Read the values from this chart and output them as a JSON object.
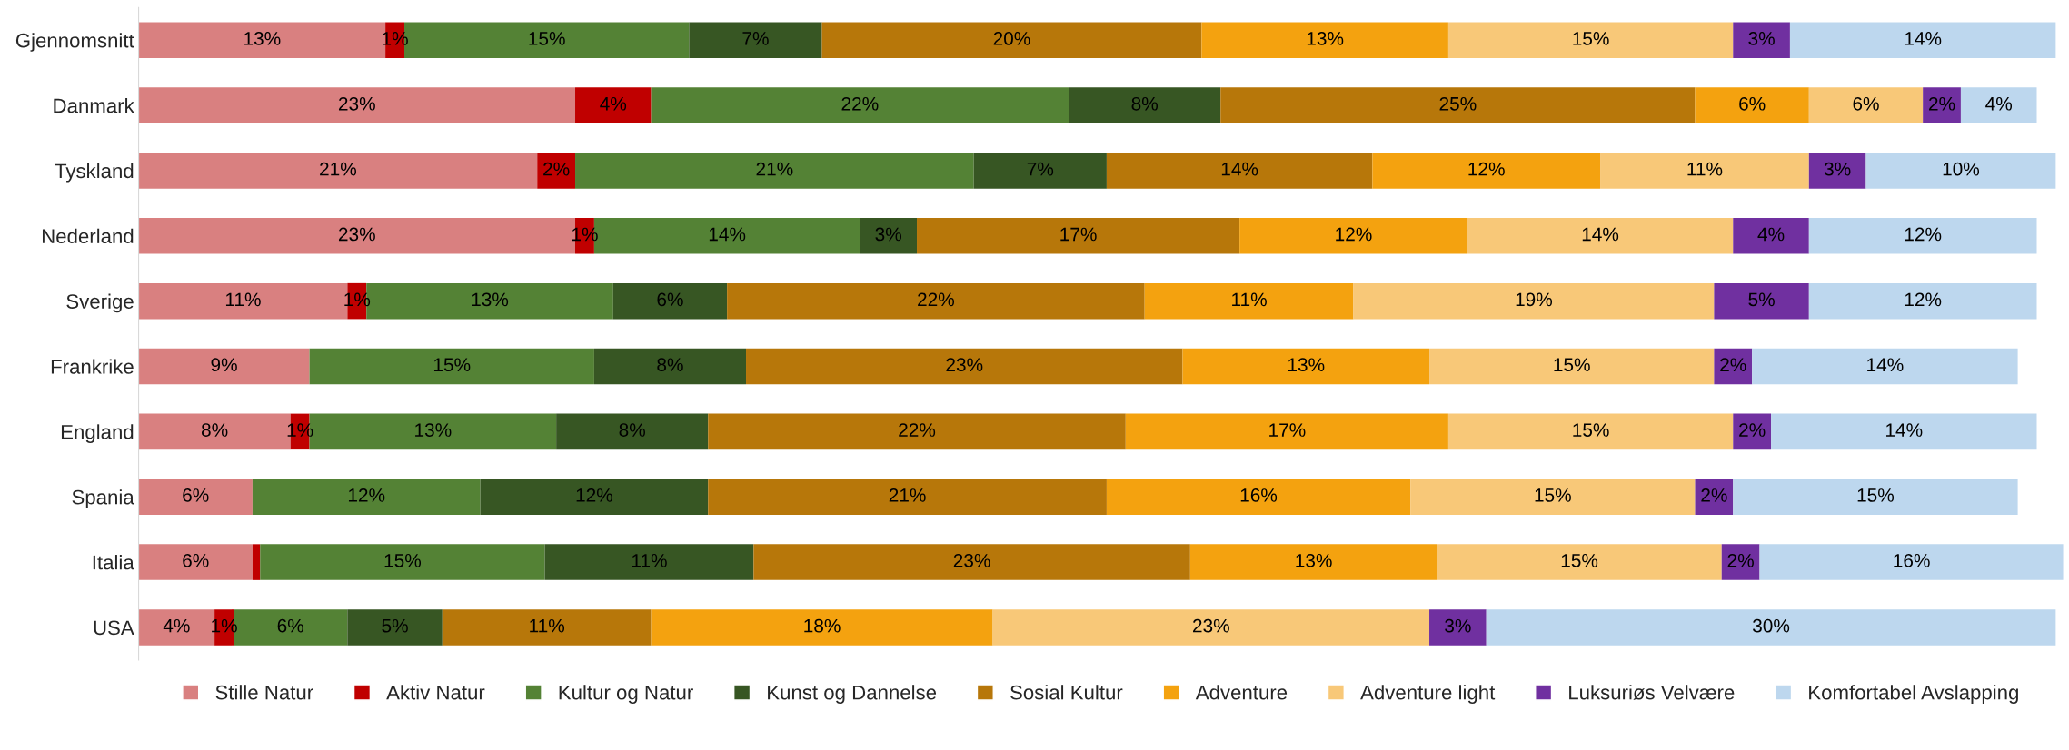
{
  "chart_data": {
    "type": "bar",
    "orientation": "horizontal",
    "stacked": true,
    "legend": "bottom",
    "grid": false,
    "tick_labels": "y",
    "categories": [
      "Gjennomsnitt",
      "Danmark",
      "Tyskland",
      "Nederland",
      "Sverige",
      "Frankrike",
      "England",
      "Spania",
      "Italia",
      "USA"
    ],
    "series": [
      {
        "name": "Stille Natur",
        "color": "#d98080",
        "values": [
          13,
          23,
          21,
          23,
          11,
          9,
          8,
          6,
          6,
          4
        ],
        "value_labels": [
          "13%",
          "23%",
          "21%",
          "23%",
          "11%",
          "9%",
          "8%",
          "6%",
          "6%",
          "4%"
        ]
      },
      {
        "name": "Aktiv Natur",
        "color": "#c00000",
        "values": [
          1,
          4,
          2,
          1,
          1,
          null,
          1,
          null,
          0.4,
          1
        ],
        "value_labels": [
          "1%",
          "4%",
          "2%",
          "1%",
          "1%",
          null,
          "1%",
          null,
          null,
          "1%"
        ]
      },
      {
        "name": "Kultur og Natur",
        "color": "#548235",
        "values": [
          15,
          22,
          21,
          14,
          13,
          15,
          13,
          12,
          15,
          6
        ],
        "value_labels": [
          "15%",
          "22%",
          "21%",
          "14%",
          "13%",
          "15%",
          "13%",
          "12%",
          "15%",
          "6%"
        ]
      },
      {
        "name": "Kunst og Dannelse",
        "color": "#375623",
        "values": [
          7,
          8,
          7,
          3,
          6,
          8,
          8,
          12,
          11,
          5
        ],
        "value_labels": [
          "7%",
          "8%",
          "7%",
          "3%",
          "6%",
          "8%",
          "8%",
          "12%",
          "11%",
          "5%"
        ]
      },
      {
        "name": "Sosial Kultur",
        "color": "#b7770a",
        "values": [
          20,
          25,
          14,
          17,
          22,
          23,
          22,
          21,
          23,
          11
        ],
        "value_labels": [
          "20%",
          "25%",
          "14%",
          "17%",
          "22%",
          "23%",
          "22%",
          "21%",
          "23%",
          "11%"
        ]
      },
      {
        "name": "Adventure",
        "color": "#f4a20f",
        "values": [
          13,
          6,
          12,
          12,
          11,
          13,
          17,
          16,
          13,
          18
        ],
        "value_labels": [
          "13%",
          "6%",
          "12%",
          "12%",
          "11%",
          "13%",
          "17%",
          "16%",
          "13%",
          "18%"
        ]
      },
      {
        "name": "Adventure light",
        "color": "#f8c878",
        "values": [
          15,
          6,
          11,
          14,
          19,
          15,
          15,
          15,
          15,
          23
        ],
        "value_labels": [
          "15%",
          "6%",
          "11%",
          "14%",
          "19%",
          "15%",
          "15%",
          "15%",
          "15%",
          "23%"
        ]
      },
      {
        "name": "Luksuriøs Velvære",
        "color": "#7030a0",
        "values": [
          3,
          2,
          3,
          4,
          5,
          2,
          2,
          2,
          2,
          3
        ],
        "value_labels": [
          "3%",
          "2%",
          "3%",
          "4%",
          "5%",
          "2%",
          "2%",
          "2%",
          "2%",
          "3%"
        ]
      },
      {
        "name": "Komfortabel Avslapping",
        "color": "#bdd7ee",
        "values": [
          14,
          4,
          10,
          12,
          12,
          14,
          14,
          15,
          16,
          30
        ],
        "value_labels": [
          "14%",
          "4%",
          "10%",
          "12%",
          "12%",
          "14%",
          "14%",
          "15%",
          "16%",
          "30%"
        ]
      }
    ]
  }
}
